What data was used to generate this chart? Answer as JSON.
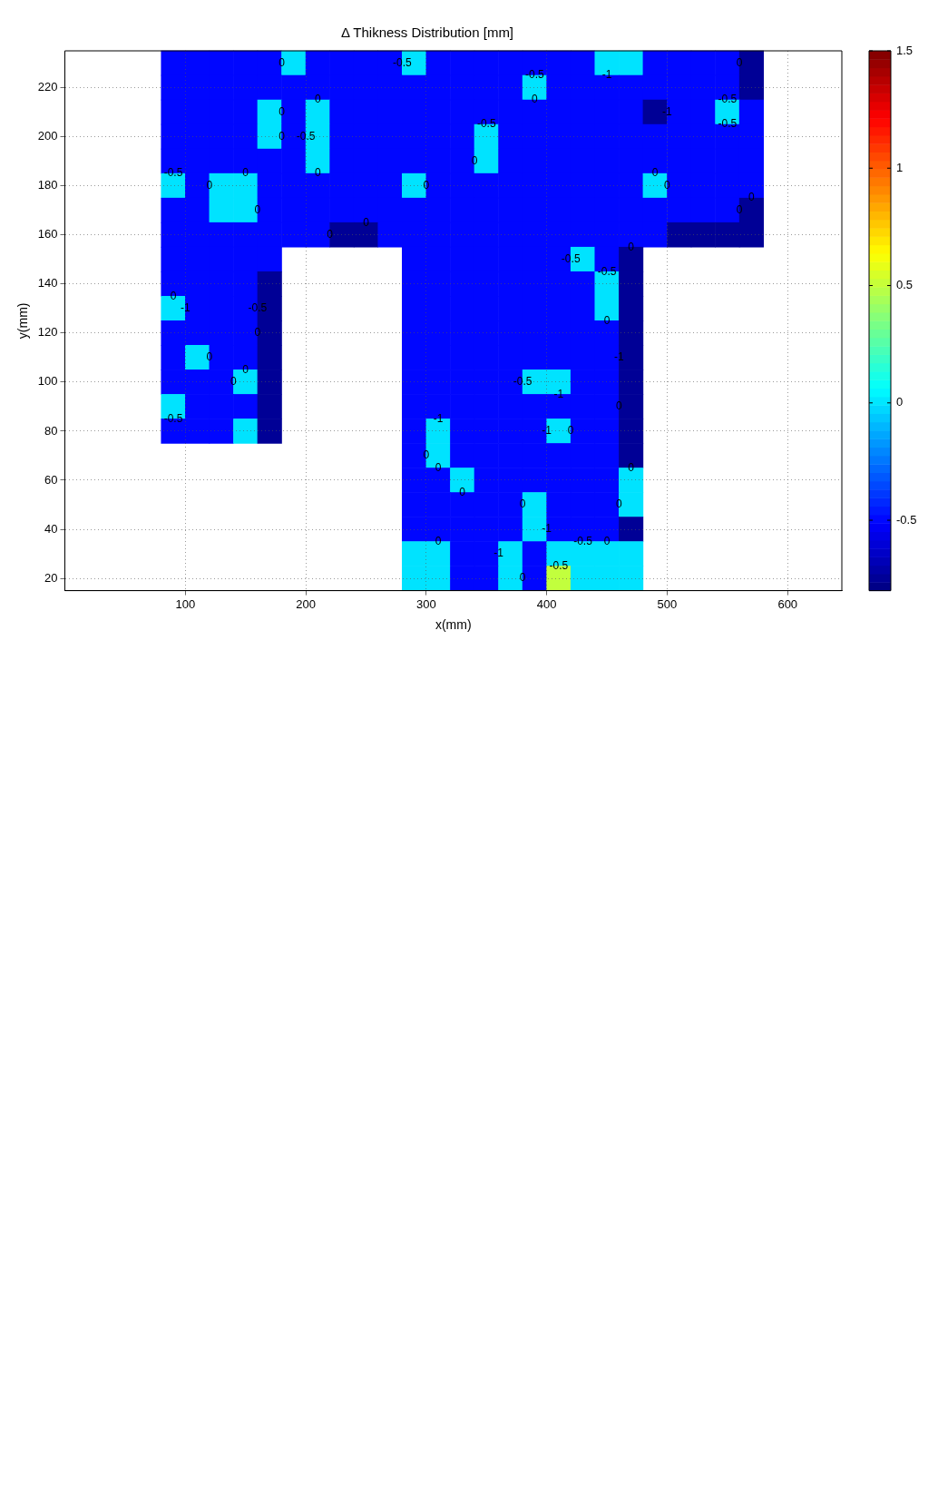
{
  "chart_data": {
    "type": "heatmap",
    "title": "Δ Thikness Distribution [mm]",
    "xlabel": "x(mm)",
    "ylabel": "y(mm)",
    "x": [
      90,
      110,
      130,
      150,
      170,
      190,
      210,
      230,
      250,
      270,
      290,
      310,
      330,
      350,
      370,
      390,
      410,
      430,
      450,
      470,
      490,
      510,
      530,
      550,
      570
    ],
    "y": [
      230,
      220,
      210,
      200,
      190,
      180,
      170,
      160,
      150,
      140,
      130,
      120,
      110,
      100,
      90,
      80,
      70,
      60,
      50,
      40,
      30,
      20
    ],
    "cells": [
      [
        -0.5,
        -0.5,
        -0.5,
        -0.5,
        -0.5,
        0,
        -0.5,
        -0.5,
        -0.5,
        -0.5,
        0,
        -0.5,
        -0.5,
        -0.5,
        -0.5,
        -0.5,
        -0.5,
        -0.5,
        0,
        0,
        -0.5,
        -0.5,
        -0.5,
        -0.5,
        -0.75
      ],
      [
        -0.5,
        -0.5,
        -0.5,
        -0.5,
        -0.5,
        -0.5,
        -0.5,
        -0.5,
        -0.5,
        -0.5,
        -0.5,
        -0.5,
        -0.5,
        -0.5,
        -0.5,
        0,
        -0.5,
        -0.5,
        -0.5,
        -0.5,
        -0.5,
        -0.5,
        -0.5,
        -0.5,
        -0.75
      ],
      [
        -0.5,
        -0.5,
        -0.5,
        -0.5,
        0,
        -0.5,
        0,
        -0.5,
        -0.5,
        -0.5,
        -0.5,
        -0.5,
        -0.5,
        -0.5,
        -0.5,
        -0.5,
        -0.5,
        -0.5,
        -0.5,
        -0.5,
        -0.75,
        -0.5,
        -0.5,
        0,
        -0.5
      ],
      [
        -0.5,
        -0.5,
        -0.5,
        -0.5,
        0,
        -0.5,
        0,
        -0.5,
        -0.5,
        -0.5,
        -0.5,
        -0.5,
        -0.5,
        0,
        -0.5,
        -0.5,
        -0.5,
        -0.5,
        -0.5,
        -0.5,
        -0.5,
        -0.5,
        -0.5,
        -0.5,
        -0.5
      ],
      [
        -0.5,
        -0.5,
        -0.5,
        -0.5,
        -0.5,
        -0.5,
        0,
        -0.5,
        -0.5,
        -0.5,
        -0.5,
        -0.5,
        -0.5,
        0,
        -0.5,
        -0.5,
        -0.5,
        -0.5,
        -0.5,
        -0.5,
        -0.5,
        -0.5,
        -0.5,
        -0.5,
        -0.5
      ],
      [
        0,
        -0.5,
        0,
        0,
        -0.5,
        -0.5,
        -0.5,
        -0.5,
        -0.5,
        -0.5,
        0,
        -0.5,
        -0.5,
        -0.5,
        -0.5,
        -0.5,
        -0.5,
        -0.5,
        -0.5,
        -0.5,
        0,
        -0.5,
        -0.5,
        -0.5,
        -0.5
      ],
      [
        -0.5,
        -0.5,
        0,
        0,
        -0.5,
        -0.5,
        -0.5,
        -0.5,
        -0.5,
        -0.5,
        -0.5,
        -0.5,
        -0.5,
        -0.5,
        -0.5,
        -0.5,
        -0.5,
        -0.5,
        -0.5,
        -0.5,
        -0.5,
        -0.5,
        -0.5,
        -0.5,
        -0.75
      ],
      [
        -0.5,
        -0.5,
        -0.5,
        -0.5,
        -0.5,
        -0.5,
        -0.5,
        -0.75,
        -0.75,
        -0.5,
        -0.5,
        -0.5,
        -0.5,
        -0.5,
        -0.5,
        -0.5,
        -0.5,
        -0.5,
        -0.5,
        -0.5,
        -0.5,
        -0.75,
        -0.75,
        -0.75,
        -0.75
      ],
      [
        -0.5,
        -0.5,
        -0.5,
        -0.5,
        -0.5,
        null,
        null,
        null,
        null,
        null,
        -0.5,
        -0.5,
        -0.5,
        -0.5,
        -0.5,
        -0.5,
        -0.5,
        0,
        -0.5,
        -0.75,
        null,
        null,
        null,
        null,
        null
      ],
      [
        -0.5,
        -0.5,
        -0.5,
        -0.5,
        -0.75,
        null,
        null,
        null,
        null,
        null,
        -0.5,
        -0.5,
        -0.5,
        -0.5,
        -0.5,
        -0.5,
        -0.5,
        -0.5,
        0,
        -0.75,
        null,
        null,
        null,
        null,
        null
      ],
      [
        0,
        -0.5,
        -0.5,
        -0.5,
        -0.75,
        null,
        null,
        null,
        null,
        null,
        -0.5,
        -0.5,
        -0.5,
        -0.5,
        -0.5,
        -0.5,
        -0.5,
        -0.5,
        0,
        -0.75,
        null,
        null,
        null,
        null,
        null
      ],
      [
        -0.5,
        -0.5,
        -0.5,
        -0.5,
        -0.75,
        null,
        null,
        null,
        null,
        null,
        -0.5,
        -0.5,
        -0.5,
        -0.5,
        -0.5,
        -0.5,
        -0.5,
        -0.5,
        -0.5,
        -0.75,
        null,
        null,
        null,
        null,
        null
      ],
      [
        -0.5,
        0,
        -0.5,
        -0.5,
        -0.75,
        null,
        null,
        null,
        null,
        null,
        -0.5,
        -0.5,
        -0.5,
        -0.5,
        -0.5,
        -0.5,
        -0.5,
        -0.5,
        -0.5,
        -0.75,
        null,
        null,
        null,
        null,
        null
      ],
      [
        -0.5,
        -0.5,
        -0.5,
        0,
        -0.75,
        null,
        null,
        null,
        null,
        null,
        -0.5,
        -0.5,
        -0.5,
        -0.5,
        -0.5,
        0,
        0,
        -0.5,
        -0.5,
        -0.75,
        null,
        null,
        null,
        null,
        null
      ],
      [
        0,
        -0.5,
        -0.5,
        -0.5,
        -0.75,
        null,
        null,
        null,
        null,
        null,
        -0.5,
        -0.5,
        -0.5,
        -0.5,
        -0.5,
        -0.5,
        -0.5,
        -0.5,
        -0.5,
        -0.75,
        null,
        null,
        null,
        null,
        null
      ],
      [
        -0.5,
        -0.5,
        -0.5,
        0,
        -0.75,
        null,
        null,
        null,
        null,
        null,
        -0.5,
        0,
        -0.5,
        -0.5,
        -0.5,
        -0.5,
        0,
        -0.5,
        -0.5,
        -0.75,
        null,
        null,
        null,
        null,
        null
      ],
      [
        null,
        null,
        null,
        null,
        null,
        null,
        null,
        null,
        null,
        null,
        -0.5,
        0,
        -0.5,
        -0.5,
        -0.5,
        -0.5,
        -0.5,
        -0.5,
        -0.5,
        -0.75,
        null,
        null,
        null,
        null,
        null
      ],
      [
        null,
        null,
        null,
        null,
        null,
        null,
        null,
        null,
        null,
        null,
        -0.5,
        -0.5,
        0,
        -0.5,
        -0.5,
        -0.5,
        -0.5,
        -0.5,
        -0.5,
        0,
        null,
        null,
        null,
        null,
        null
      ],
      [
        null,
        null,
        null,
        null,
        null,
        null,
        null,
        null,
        null,
        null,
        -0.5,
        -0.5,
        -0.5,
        -0.5,
        -0.5,
        0,
        -0.5,
        -0.5,
        -0.5,
        0,
        null,
        null,
        null,
        null,
        null
      ],
      [
        null,
        null,
        null,
        null,
        null,
        null,
        null,
        null,
        null,
        null,
        -0.5,
        -0.5,
        -0.5,
        -0.5,
        -0.5,
        0,
        -0.5,
        -0.5,
        -0.5,
        -0.75,
        null,
        null,
        null,
        null,
        null
      ],
      [
        null,
        null,
        null,
        null,
        null,
        null,
        null,
        null,
        null,
        null,
        0,
        0,
        -0.5,
        -0.5,
        0,
        -0.5,
        0,
        0,
        0,
        0,
        null,
        null,
        null,
        null,
        null
      ],
      [
        null,
        null,
        null,
        null,
        null,
        null,
        null,
        null,
        null,
        null,
        0,
        0,
        -0.5,
        -0.5,
        0,
        -0.5,
        0.5,
        0,
        0,
        0,
        null,
        null,
        null,
        null,
        null
      ]
    ],
    "xlim": [
      0,
      645
    ],
    "ylim": [
      15,
      235
    ],
    "xticks": [
      100,
      200,
      300,
      400,
      500,
      600
    ],
    "yticks": [
      20,
      40,
      60,
      80,
      100,
      120,
      140,
      160,
      180,
      200,
      220
    ],
    "clim": [
      -0.8,
      1.5
    ],
    "cticks": [
      -0.5,
      0,
      0.5,
      1,
      1.5
    ],
    "grid": true,
    "annotations": [
      "0",
      "-0.5",
      "-0.5",
      "-1",
      "0",
      "0",
      "0",
      "-0.5",
      "0",
      "-0.5",
      "-1",
      "-0.5",
      "0",
      "-0.5",
      "-0.5",
      "0",
      "0",
      "0",
      "0",
      "0",
      "0",
      "0",
      "0",
      "0",
      "0",
      "0",
      "0",
      "0",
      "-0.5",
      "-0.5",
      "0",
      "-1",
      "-0.5",
      "0",
      "0",
      "0",
      "0",
      "-1",
      "0",
      "-0.5",
      "-1",
      "-0.5",
      "-1",
      "0",
      "-1",
      "0",
      "0",
      "0",
      "0",
      "0",
      "0",
      "0",
      "0",
      "-1",
      "-0.5",
      "0",
      "-1",
      "-0.5",
      "0"
    ]
  }
}
